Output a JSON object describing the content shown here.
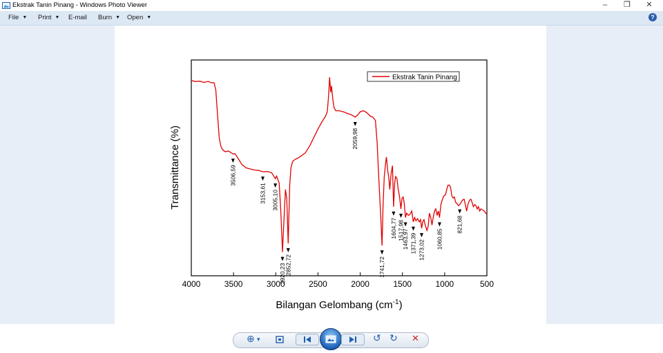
{
  "window": {
    "title": "Ekstrak Tanin Pinang - Windows Photo Viewer",
    "minimize_glyph": "–",
    "restore_glyph": "❐",
    "close_glyph": "✕"
  },
  "menu": {
    "file": "File",
    "print": "Print",
    "email": "E-mail",
    "burn": "Burn",
    "open": "Open",
    "help": "?"
  },
  "colors": {
    "accent": "#2a5ca8",
    "series": "#e00000",
    "menubar": "#dde8f5"
  },
  "chart_data": {
    "type": "line",
    "ylabel": "Transmittance (%)",
    "xlabel_prefix": "Bilangan Gelombang (cm",
    "xlabel_sup": "-1",
    "xlabel_suffix": ")",
    "xlim": [
      4000,
      500
    ],
    "ylim": [
      0,
      100
    ],
    "x_reversed": true,
    "x_ticks": [
      4000,
      3500,
      3000,
      2500,
      2000,
      1500,
      1000,
      500
    ],
    "y_tick_labels_visible": false,
    "grid": false,
    "legend": {
      "position": "top-right",
      "entries": [
        "Ekstrak Tanin Pinang"
      ]
    },
    "series": [
      {
        "name": "Ekstrak Tanin Pinang",
        "color": "#e00000",
        "points": [
          [
            4000,
            90.5
          ],
          [
            3950,
            90.0
          ],
          [
            3900,
            90.2
          ],
          [
            3850,
            89.6
          ],
          [
            3800,
            90.1
          ],
          [
            3760,
            89.4
          ],
          [
            3730,
            89.5
          ],
          [
            3710,
            86.0
          ],
          [
            3690,
            75.0
          ],
          [
            3670,
            64.0
          ],
          [
            3650,
            60.0
          ],
          [
            3630,
            58.5
          ],
          [
            3600,
            57.5
          ],
          [
            3560,
            57.8
          ],
          [
            3506.59,
            56.5
          ],
          [
            3480,
            56.5
          ],
          [
            3440,
            54.0
          ],
          [
            3400,
            51.5
          ],
          [
            3350,
            50.0
          ],
          [
            3300,
            49.5
          ],
          [
            3250,
            49.0
          ],
          [
            3200,
            48.8
          ],
          [
            3153.61,
            48.2
          ],
          [
            3100,
            48.3
          ],
          [
            3050,
            47.8
          ],
          [
            3005.1,
            45.0
          ],
          [
            2990,
            46.2
          ],
          [
            2960,
            43.0
          ],
          [
            2940,
            30.0
          ],
          [
            2920.23,
            11.0
          ],
          [
            2900,
            28.0
          ],
          [
            2885,
            40.0
          ],
          [
            2870,
            36.0
          ],
          [
            2852.72,
            15.0
          ],
          [
            2835,
            42.0
          ],
          [
            2820,
            50.0
          ],
          [
            2800,
            53.0
          ],
          [
            2770,
            54.0
          ],
          [
            2740,
            54.5
          ],
          [
            2700,
            55.5
          ],
          [
            2650,
            57.0
          ],
          [
            2600,
            60.0
          ],
          [
            2550,
            64.0
          ],
          [
            2500,
            68.0
          ],
          [
            2450,
            71.5
          ],
          [
            2410,
            74.0
          ],
          [
            2390,
            76.0
          ],
          [
            2375,
            83.0
          ],
          [
            2362,
            92.0
          ],
          [
            2350,
            85.0
          ],
          [
            2340,
            88.0
          ],
          [
            2325,
            82.0
          ],
          [
            2310,
            78.0
          ],
          [
            2290,
            76.5
          ],
          [
            2250,
            76.5
          ],
          [
            2200,
            76.0
          ],
          [
            2150,
            75.2
          ],
          [
            2100,
            74.5
          ],
          [
            2059.98,
            73.5
          ],
          [
            2030,
            74.5
          ],
          [
            2000,
            76.0
          ],
          [
            1960,
            76.5
          ],
          [
            1920,
            75.5
          ],
          [
            1880,
            74.0
          ],
          [
            1850,
            73.5
          ],
          [
            1820,
            72.0
          ],
          [
            1800,
            62.0
          ],
          [
            1780,
            45.0
          ],
          [
            1760,
            30.0
          ],
          [
            1741.72,
            14.0
          ],
          [
            1730,
            32.0
          ],
          [
            1715,
            46.0
          ],
          [
            1700,
            52.0
          ],
          [
            1690,
            55.0
          ],
          [
            1675,
            49.0
          ],
          [
            1660,
            45.0
          ],
          [
            1650,
            40.0
          ],
          [
            1635,
            47.0
          ],
          [
            1618,
            51.0
          ],
          [
            1604.77,
            32.0
          ],
          [
            1592,
            43.0
          ],
          [
            1580,
            46.0
          ],
          [
            1565,
            45.0
          ],
          [
            1550,
            40.0
          ],
          [
            1535,
            37.0
          ],
          [
            1517.98,
            31.0
          ],
          [
            1505,
            36.0
          ],
          [
            1490,
            36.5
          ],
          [
            1477,
            33.0
          ],
          [
            1463.97,
            27.0
          ],
          [
            1450,
            29.0
          ],
          [
            1430,
            28.0
          ],
          [
            1410,
            28.5
          ],
          [
            1390,
            30.0
          ],
          [
            1371.39,
            25.0
          ],
          [
            1355,
            27.0
          ],
          [
            1340,
            25.5
          ],
          [
            1320,
            26.5
          ],
          [
            1300,
            25.0
          ],
          [
            1285,
            26.0
          ],
          [
            1273.02,
            22.0
          ],
          [
            1260,
            25.0
          ],
          [
            1245,
            26.0
          ],
          [
            1230,
            23.5
          ],
          [
            1210,
            21.0
          ],
          [
            1195,
            23.0
          ],
          [
            1180,
            29.0
          ],
          [
            1165,
            27.0
          ],
          [
            1150,
            23.5
          ],
          [
            1135,
            27.0
          ],
          [
            1120,
            30.0
          ],
          [
            1105,
            31.0
          ],
          [
            1090,
            28.0
          ],
          [
            1075,
            30.0
          ],
          [
            1060.85,
            27.0
          ],
          [
            1045,
            33.0
          ],
          [
            1030,
            35.0
          ],
          [
            1010,
            37.0
          ],
          [
            990,
            37.5
          ],
          [
            975,
            40.0
          ],
          [
            960,
            42.0
          ],
          [
            945,
            42.0
          ],
          [
            930,
            41.0
          ],
          [
            915,
            37.0
          ],
          [
            900,
            36.0
          ],
          [
            885,
            36.5
          ],
          [
            870,
            34.0
          ],
          [
            855,
            33.5
          ],
          [
            835,
            32.5
          ],
          [
            821.68,
            33.0
          ],
          [
            805,
            34.0
          ],
          [
            790,
            35.0
          ],
          [
            770,
            35.5
          ],
          [
            755,
            33.0
          ],
          [
            740,
            30.0
          ],
          [
            725,
            33.0
          ],
          [
            705,
            35.0
          ],
          [
            690,
            35.5
          ],
          [
            675,
            34.0
          ],
          [
            660,
            32.0
          ],
          [
            645,
            33.0
          ],
          [
            630,
            32.5
          ],
          [
            615,
            31.0
          ],
          [
            600,
            32.0
          ],
          [
            585,
            30.0
          ],
          [
            570,
            31.0
          ],
          [
            550,
            30.5
          ],
          [
            530,
            30.0
          ],
          [
            515,
            29.0
          ],
          [
            500,
            28.5
          ]
        ]
      }
    ],
    "annotations": [
      {
        "x": 3506.59,
        "label": "3506,59"
      },
      {
        "x": 3153.61,
        "label": "3153,61"
      },
      {
        "x": 3005.1,
        "label": "3005,10"
      },
      {
        "x": 2920.23,
        "label": "2920,23"
      },
      {
        "x": 2852.72,
        "label": "2852,72"
      },
      {
        "x": 2059.98,
        "label": "2059,98"
      },
      {
        "x": 1741.72,
        "label": "1741,72"
      },
      {
        "x": 1604.77,
        "label": "1604,77"
      },
      {
        "x": 1517.98,
        "label": "1517,98"
      },
      {
        "x": 1463.97,
        "label": "1463,97"
      },
      {
        "x": 1371.39,
        "label": "1371,39"
      },
      {
        "x": 1273.02,
        "label": "1273,02"
      },
      {
        "x": 1060.85,
        "label": "1060,85"
      },
      {
        "x": 821.68,
        "label": "821,68"
      }
    ]
  },
  "toolbar": {
    "zoom_glyph": "⊕",
    "zoom_caret": "▾",
    "prev_glyph": "◀",
    "next_glyph": "▶",
    "rotate_ccw_glyph": "↺",
    "rotate_cw_glyph": "↻",
    "delete_glyph": "✕"
  }
}
